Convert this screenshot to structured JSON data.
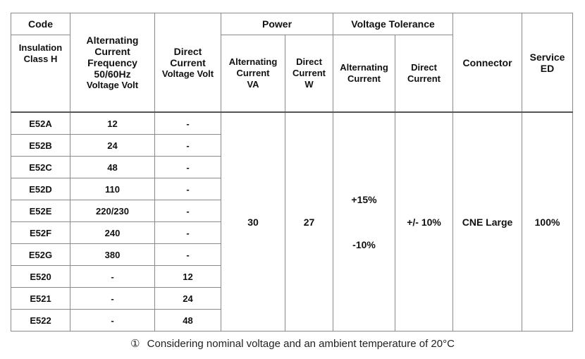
{
  "headers": {
    "code": "Code",
    "insulation": "Insulation\nClass H",
    "ac_frequency_title": "Alternating Current Frequency 50/60Hz",
    "ac_voltage": "Voltage Volt",
    "dc_title": "Direct Current",
    "dc_voltage": "Voltage Volt",
    "power": "Power",
    "power_ac": "Alternating Current",
    "power_ac_unit": "VA",
    "power_dc": "Direct Current",
    "power_dc_unit": "W",
    "voltage_tolerance": "Voltage Tolerance",
    "tol_ac": "Alternating Current",
    "tol_dc": "Direct Current",
    "connector": "Connector",
    "service": "Service ED"
  },
  "rows": [
    {
      "code": "E52A",
      "ac": "12",
      "dc": "-"
    },
    {
      "code": "E52B",
      "ac": "24",
      "dc": "-"
    },
    {
      "code": "E52C",
      "ac": "48",
      "dc": "-"
    },
    {
      "code": "E52D",
      "ac": "110",
      "dc": "-"
    },
    {
      "code": "E52E",
      "ac": "220/230",
      "dc": "-"
    },
    {
      "code": "E52F",
      "ac": "240",
      "dc": "-"
    },
    {
      "code": "E52G",
      "ac": "380",
      "dc": "-"
    },
    {
      "code": "E520",
      "ac": "-",
      "dc": "12"
    },
    {
      "code": "E521",
      "ac": "-",
      "dc": "24"
    },
    {
      "code": "E522",
      "ac": "-",
      "dc": "48"
    }
  ],
  "merged": {
    "power_ac_value": "30",
    "power_dc_value": "27",
    "tol_ac_plus": "+15%",
    "tol_ac_minus": "-10%",
    "tol_dc_value": "+/- 10%",
    "connector_value": "CNE Large",
    "service_value": "100%"
  },
  "footnote": {
    "marker": "①",
    "text": "Considering nominal voltage and an ambient temperature of 20°C"
  }
}
